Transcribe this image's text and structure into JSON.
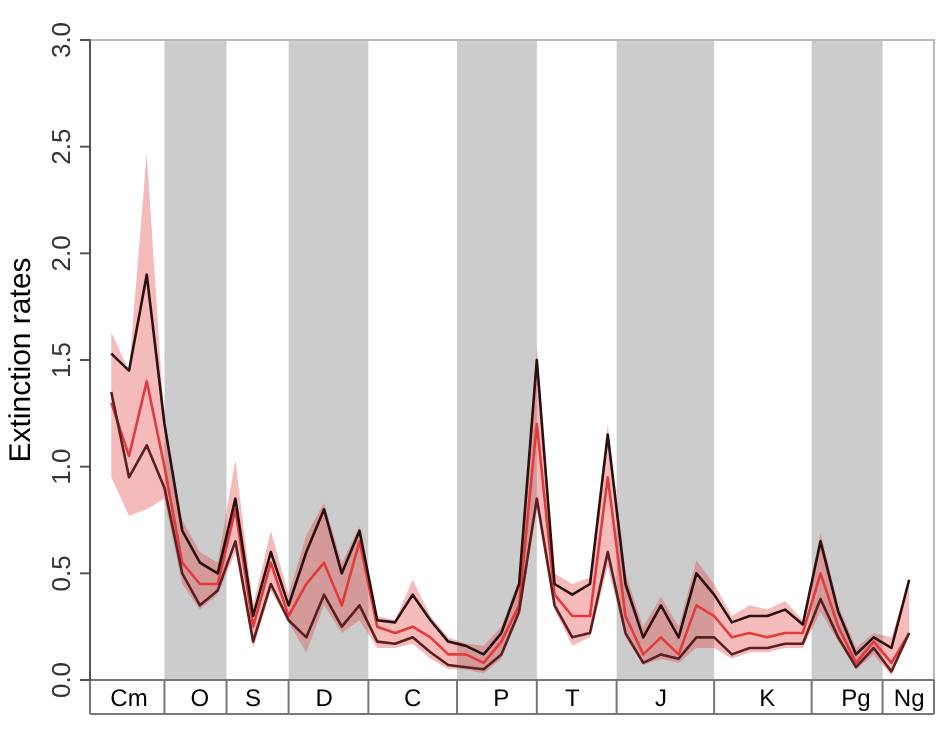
{
  "chart_data": {
    "type": "line",
    "ylabel": "Extinction rates",
    "ylim": [
      0,
      3
    ],
    "yticks": [
      {
        "value": 0,
        "label": "0.0"
      },
      {
        "value": 0.5,
        "label": "0.5"
      },
      {
        "value": 1,
        "label": "1.0"
      },
      {
        "value": 1.5,
        "label": "1.5"
      },
      {
        "value": 2,
        "label": "2.0"
      },
      {
        "value": 2.5,
        "label": "2.5"
      },
      {
        "value": 3,
        "label": "3.0"
      }
    ],
    "line_style": "solid",
    "categories": [
      null,
      "Cm",
      null,
      null,
      null,
      "O",
      null,
      null,
      "S",
      null,
      null,
      null,
      "D",
      null,
      null,
      null,
      null,
      "C",
      null,
      null,
      null,
      null,
      "P",
      null,
      null,
      null,
      "T",
      null,
      null,
      null,
      null,
      "J",
      null,
      null,
      null,
      null,
      null,
      "K",
      null,
      null,
      null,
      null,
      "Pg",
      null,
      null,
      "Ng"
    ],
    "series": [
      {
        "color": "#e23b3b",
        "values": [
          1.3,
          1.05,
          1.4,
          1.0,
          0.55,
          0.45,
          0.45,
          0.8,
          0.25,
          0.55,
          0.3,
          0.45,
          0.55,
          0.35,
          0.65,
          0.25,
          0.22,
          0.25,
          0.2,
          0.12,
          0.12,
          0.08,
          0.18,
          0.35,
          1.2,
          0.4,
          0.3,
          0.3,
          0.95,
          0.3,
          0.12,
          0.2,
          0.12,
          0.35,
          0.3,
          0.2,
          0.22,
          0.2,
          0.22,
          0.22,
          0.5,
          0.25,
          0.08,
          0.18,
          0.08,
          0.22
        ],
        "lower": [
          0.95,
          0.77,
          0.8,
          0.85,
          0.45,
          0.33,
          0.4,
          0.6,
          0.15,
          0.42,
          0.27,
          0.13,
          0.35,
          0.22,
          0.28,
          0.15,
          0.15,
          0.17,
          0.1,
          0.05,
          0.05,
          0.03,
          0.1,
          0.3,
          0.8,
          0.33,
          0.16,
          0.2,
          0.53,
          0.2,
          0.07,
          0.1,
          0.08,
          0.15,
          0.15,
          0.1,
          0.13,
          0.13,
          0.15,
          0.15,
          0.32,
          0.18,
          0.05,
          0.12,
          0.02,
          0.22
        ],
        "upper": [
          1.63,
          1.45,
          2.47,
          1.2,
          0.75,
          0.6,
          0.55,
          1.03,
          0.35,
          0.7,
          0.4,
          0.68,
          0.83,
          0.55,
          0.72,
          0.3,
          0.28,
          0.47,
          0.3,
          0.2,
          0.17,
          0.16,
          0.25,
          0.47,
          1.56,
          0.5,
          0.45,
          0.48,
          1.2,
          0.5,
          0.25,
          0.39,
          0.25,
          0.56,
          0.45,
          0.3,
          0.35,
          0.33,
          0.37,
          0.28,
          0.69,
          0.35,
          0.15,
          0.22,
          0.2,
          0.47
        ]
      },
      {
        "color": "#2a1010",
        "values": [
          1.53,
          1.45,
          1.9,
          1.2,
          0.7,
          0.55,
          0.5,
          0.85,
          0.3,
          0.6,
          0.35,
          0.6,
          0.8,
          0.5,
          0.7,
          0.28,
          0.27,
          0.4,
          0.28,
          0.18,
          0.16,
          0.12,
          0.22,
          0.45,
          1.5,
          0.45,
          0.4,
          0.45,
          1.15,
          0.45,
          0.2,
          0.35,
          0.2,
          0.5,
          0.4,
          0.27,
          0.3,
          0.3,
          0.33,
          0.26,
          0.65,
          0.32,
          0.12,
          0.2,
          0.15,
          0.47
        ]
      },
      {
        "color": "#5a2020",
        "values": [
          1.35,
          0.95,
          1.1,
          0.9,
          0.5,
          0.35,
          0.42,
          0.65,
          0.18,
          0.45,
          0.28,
          0.2,
          0.4,
          0.25,
          0.35,
          0.18,
          0.17,
          0.2,
          0.13,
          0.07,
          0.06,
          0.05,
          0.12,
          0.32,
          0.85,
          0.35,
          0.2,
          0.22,
          0.6,
          0.22,
          0.08,
          0.12,
          0.1,
          0.2,
          0.2,
          0.12,
          0.15,
          0.15,
          0.17,
          0.17,
          0.38,
          0.2,
          0.06,
          0.15,
          0.04,
          0.22
        ]
      }
    ]
  }
}
